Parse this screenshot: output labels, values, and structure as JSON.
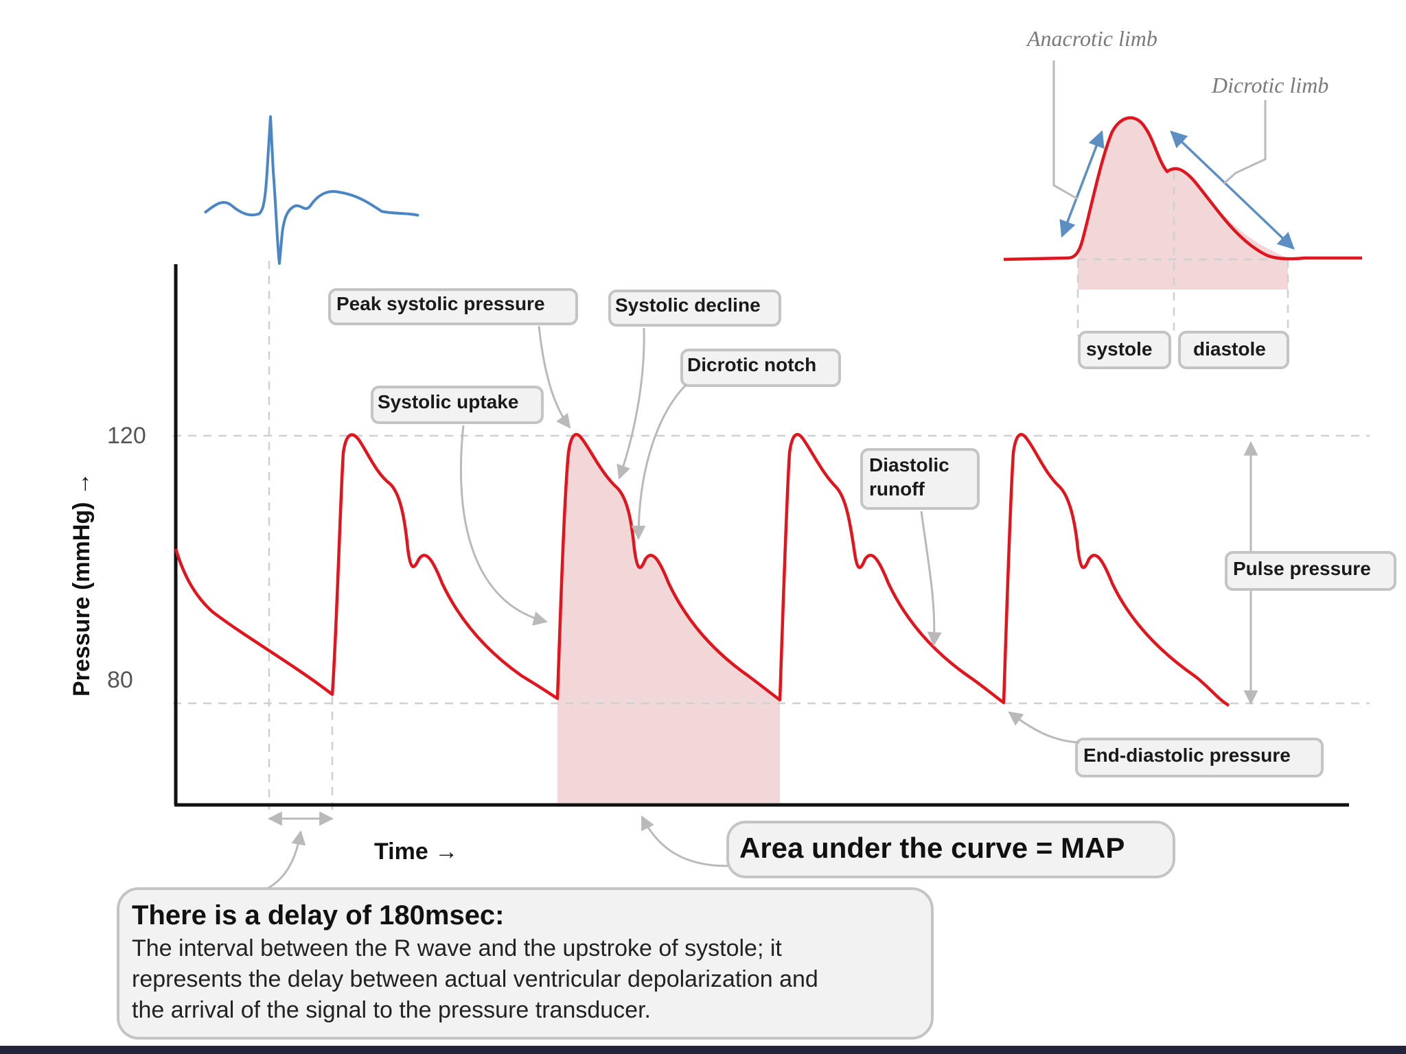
{
  "diagram": {
    "y_axis": {
      "label": "Pressure (mmHg) →",
      "ticks": [
        "120",
        "80"
      ]
    },
    "x_axis": {
      "label": "Time →"
    },
    "annotations": {
      "peak_systolic": "Peak systolic pressure",
      "systolic_decline": "Systolic decline",
      "dicrotic_notch": "Dicrotic notch",
      "systolic_uptake": "Systolic uptake",
      "diastolic_runoff_1": "Diastolic",
      "diastolic_runoff_2": "runoff",
      "pulse_pressure": "Pulse pressure",
      "end_diastolic": "End-diastolic pressure",
      "map": "Area under the curve = MAP"
    },
    "inset": {
      "anacrotic": "Anacrotic limb",
      "dicrotic": "Dicrotic limb",
      "systole": "systole",
      "diastole": "diastole"
    },
    "note": {
      "title": "There is a delay of 180msec:",
      "line1": "The interval between the R wave and the upstroke of systole; it",
      "line2": "represents the delay between actual ventricular depolarization and",
      "line3": "the arrival of the signal to the pressure transducer."
    },
    "colors": {
      "wave": "#e0151d",
      "ecg": "#4a86c6",
      "shade": "#f2d7d9"
    }
  }
}
